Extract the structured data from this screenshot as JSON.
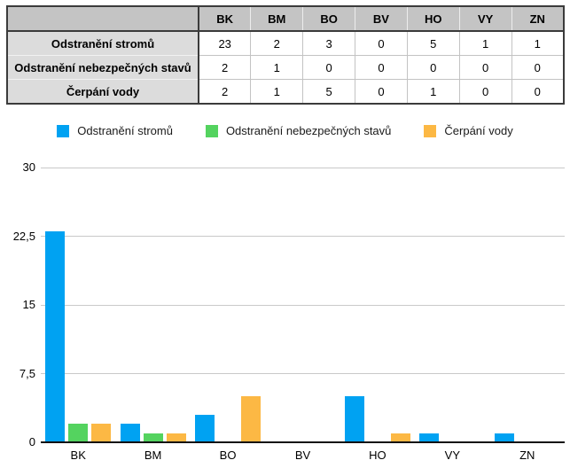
{
  "table": {
    "columns": [
      "BK",
      "BM",
      "BO",
      "BV",
      "HO",
      "VY",
      "ZN"
    ],
    "rows": [
      {
        "label": "Odstranění stromů",
        "values": [
          23,
          2,
          3,
          0,
          5,
          1,
          1
        ]
      },
      {
        "label": "Odstranění nebezpečných stavů",
        "values": [
          2,
          1,
          0,
          0,
          0,
          0,
          0
        ]
      },
      {
        "label": "Čerpání vody",
        "values": [
          2,
          1,
          5,
          0,
          1,
          0,
          0
        ]
      }
    ]
  },
  "legend": [
    {
      "label": "Odstranění stromů",
      "color": "#00A2F2"
    },
    {
      "label": "Odstranění nebezpečných stavů",
      "color": "#54D35F"
    },
    {
      "label": "Čerpání vody",
      "color": "#FCB844"
    }
  ],
  "chart_data": {
    "type": "bar",
    "categories": [
      "BK",
      "BM",
      "BO",
      "BV",
      "HO",
      "VY",
      "ZN"
    ],
    "series": [
      {
        "name": "Odstranění stromů",
        "color": "#00A2F2",
        "values": [
          23,
          2,
          3,
          0,
          5,
          1,
          1
        ]
      },
      {
        "name": "Odstranění nebezpečných stavů",
        "color": "#54D35F",
        "values": [
          2,
          1,
          0,
          0,
          0,
          0,
          0
        ]
      },
      {
        "name": "Čerpání vody",
        "color": "#FCB844",
        "values": [
          2,
          1,
          5,
          0,
          1,
          0,
          0
        ]
      }
    ],
    "title": "",
    "xlabel": "",
    "ylabel": "",
    "ylim": [
      0,
      30
    ],
    "yticks": [
      {
        "value": 0,
        "label": "0"
      },
      {
        "value": 7.5,
        "label": "7,5"
      },
      {
        "value": 15,
        "label": "15"
      },
      {
        "value": 22.5,
        "label": "22,5"
      },
      {
        "value": 30,
        "label": "30"
      }
    ],
    "grid": true,
    "legend_position": "top"
  },
  "colors": {
    "header_bg": "#c4c4c4",
    "rowlabel_bg": "#dcdcdc",
    "table_border_dark": "#3b3b3b",
    "table_border_light": "#c3c3c3",
    "gridline": "#c9c9c9",
    "axis": "#111111"
  }
}
